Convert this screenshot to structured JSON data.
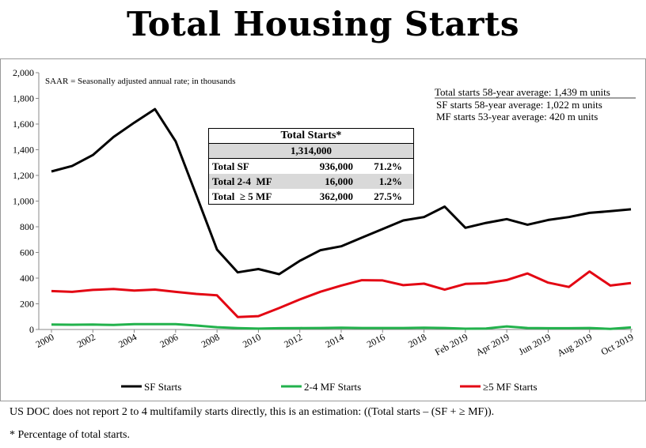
{
  "title": "Total Housing Starts",
  "chart_data": {
    "type": "line",
    "note": "SAAR = Seasonally adjusted annual rate; in thousands",
    "ylim": [
      0,
      2000
    ],
    "y_ticks": [
      "0",
      "200",
      "400",
      "600",
      "800",
      "1,000",
      "1,200",
      "1,400",
      "1,600",
      "1,800",
      "2,000"
    ],
    "x_tick_labels": [
      "2000",
      "2002",
      "2004",
      "2006",
      "2008",
      "2010",
      "2012",
      "2014",
      "2016",
      "2018",
      "Feb 2019",
      "Apr 2019",
      "Jun 2019",
      "Aug 2019",
      "Oct 2019"
    ],
    "x": [
      "2000",
      "2001",
      "2002",
      "2003",
      "2004",
      "2005",
      "2006",
      "2007",
      "2008",
      "2009",
      "2010",
      "2011",
      "2012",
      "2013",
      "2014",
      "2015",
      "2016",
      "2017",
      "2018",
      "Jan 2019",
      "Feb 2019",
      "Mar 2019",
      "Apr 2019",
      "May 2019",
      "Jun 2019",
      "Jul 2019",
      "Aug 2019",
      "Sep 2019",
      "Oct 2019"
    ],
    "series": [
      {
        "name": "SF Starts",
        "color": "#000000",
        "values": [
          1231,
          1273,
          1359,
          1499,
          1611,
          1716,
          1465,
          1046,
          622,
          445,
          471,
          431,
          535,
          618,
          648,
          715,
          782,
          849,
          876,
          957,
          792,
          830,
          860,
          816,
          853,
          876,
          908,
          921,
          936
        ]
      },
      {
        "name": "2-4 MF Starts",
        "color": "#22b24c",
        "values": [
          39,
          37,
          38,
          35,
          42,
          41,
          42,
          31,
          18,
          11,
          7,
          10,
          11,
          12,
          14,
          12,
          12,
          12,
          14,
          12,
          6,
          8,
          24,
          12,
          10,
          10,
          12,
          5,
          16
        ]
      },
      {
        "name": "≥5 MF Starts",
        "color": "#e30613",
        "values": [
          299,
          293,
          308,
          315,
          303,
          311,
          293,
          277,
          266,
          97,
          104,
          167,
          234,
          294,
          342,
          384,
          382,
          345,
          357,
          310,
          355,
          360,
          385,
          436,
          365,
          331,
          452,
          342,
          362
        ]
      }
    ],
    "annotations": [
      "Total starts 58-year average: 1,439 m units",
      "SF starts 58-year average: 1,022 m units",
      "MF starts 53-year average: 420 m units"
    ],
    "legend_position": "bottom"
  },
  "table": {
    "header": "Total Starts*",
    "total": "1,314,000",
    "rows": [
      {
        "label": "Total SF",
        "value": "936,000",
        "pct": "71.2%"
      },
      {
        "label": "Total 2-4  MF",
        "value": "16,000",
        "pct": "1.2%"
      },
      {
        "label": "Total  ≥ 5 MF",
        "value": "362,000",
        "pct": "27.5%"
      }
    ]
  },
  "footnotes": [
    "US DOC does not report 2 to 4 multifamily starts directly, this is an estimation: ((Total starts – (SF + ≥ MF)).",
    "* Percentage of total starts."
  ]
}
